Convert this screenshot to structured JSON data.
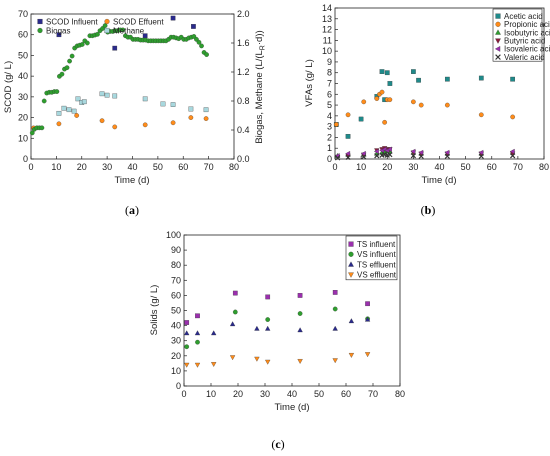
{
  "chart_data": [
    {
      "id": "a",
      "caption": "a",
      "type": "scatter",
      "xlabel": "Time (d)",
      "ylabel": "SCOD (g/ L)",
      "y2label": "Biogas, Methane (L/(L R·d))",
      "y2label_main": "Biogas, Methane (L/(L",
      "y2label_sub": "R",
      "y2label_end": "·d))",
      "xlim": [
        0,
        80
      ],
      "ylim": [
        0,
        70
      ],
      "y2lim": [
        0,
        2.0
      ],
      "xticks": [
        0,
        10,
        20,
        30,
        40,
        50,
        60,
        70,
        80
      ],
      "yticks": [
        0,
        10,
        20,
        30,
        40,
        50,
        60,
        70
      ],
      "y2ticks": [
        0.0,
        0.4,
        0.8,
        1.2,
        1.6,
        2.0
      ],
      "legend_position": "top-left",
      "series": [
        {
          "name": "SCOD Influent",
          "axis": "y",
          "marker": "square",
          "color": "#2a2a8c",
          "points": [
            [
              11,
              60
            ],
            [
              33,
              53.5
            ],
            [
              45,
              59.5
            ],
            [
              56,
              68
            ],
            [
              64,
              64
            ]
          ]
        },
        {
          "name": "SCOD Effuent",
          "axis": "y",
          "marker": "circle",
          "color": "#ff8c1a",
          "points": [
            [
              1,
              15
            ],
            [
              11,
              17
            ],
            [
              18,
              21
            ],
            [
              28,
              18.5
            ],
            [
              33,
              15.5
            ],
            [
              45,
              16.5
            ],
            [
              56,
              17.5
            ],
            [
              63,
              20
            ],
            [
              69,
              19.5
            ]
          ]
        },
        {
          "name": "Biogas",
          "axis": "y2",
          "marker": "circle",
          "color": "#2e9e2e",
          "points": [
            [
              0.5,
              0.36
            ],
            [
              1.3,
              0.41
            ],
            [
              2.3,
              0.43
            ],
            [
              3.3,
              0.43
            ],
            [
              4.3,
              0.43
            ],
            [
              5.2,
              0.8
            ],
            [
              6.2,
              0.91
            ],
            [
              7.2,
              0.92
            ],
            [
              8.2,
              0.92
            ],
            [
              9.2,
              0.93
            ],
            [
              10.2,
              0.93
            ],
            [
              11.2,
              1.14
            ],
            [
              12.2,
              1.17
            ],
            [
              13.2,
              1.24
            ],
            [
              14.2,
              1.26
            ],
            [
              15.2,
              1.35
            ],
            [
              16.2,
              1.42
            ],
            [
              17.2,
              1.53
            ],
            [
              18.2,
              1.56
            ],
            [
              19.2,
              1.57
            ],
            [
              20.2,
              1.58
            ],
            [
              21.2,
              1.63
            ],
            [
              22.2,
              1.6
            ],
            [
              23.2,
              1.7
            ],
            [
              24.2,
              1.7
            ],
            [
              25.2,
              1.71
            ],
            [
              26.2,
              1.72
            ],
            [
              27.2,
              1.77
            ],
            [
              28.2,
              1.8
            ],
            [
              29.2,
              1.84
            ],
            [
              30.2,
              1.75
            ],
            [
              31.2,
              1.76
            ],
            [
              32.2,
              1.76
            ],
            [
              33.2,
              1.77
            ],
            [
              34.2,
              1.77
            ],
            [
              35.2,
              1.78
            ],
            [
              36.2,
              1.78
            ],
            [
              37.2,
              1.7
            ],
            [
              38.2,
              1.68
            ],
            [
              39.2,
              1.68
            ],
            [
              40.2,
              1.65
            ],
            [
              41.2,
              1.65
            ],
            [
              42.2,
              1.65
            ],
            [
              43.2,
              1.64
            ],
            [
              44.2,
              1.64
            ],
            [
              45.2,
              1.64
            ],
            [
              46.2,
              1.63
            ],
            [
              47.2,
              1.63
            ],
            [
              48.2,
              1.63
            ],
            [
              49.2,
              1.63
            ],
            [
              50.2,
              1.63
            ],
            [
              51.2,
              1.63
            ],
            [
              52.2,
              1.63
            ],
            [
              53.2,
              1.63
            ],
            [
              54.2,
              1.65
            ],
            [
              55.2,
              1.68
            ],
            [
              56.2,
              1.68
            ],
            [
              57.2,
              1.67
            ],
            [
              58.2,
              1.66
            ],
            [
              59.2,
              1.68
            ],
            [
              60.2,
              1.65
            ],
            [
              61.2,
              1.65
            ],
            [
              62.2,
              1.67
            ],
            [
              63.2,
              1.68
            ],
            [
              64.2,
              1.69
            ],
            [
              65.2,
              1.65
            ],
            [
              66.2,
              1.61
            ],
            [
              67.2,
              1.56
            ],
            [
              68.2,
              1.47
            ],
            [
              69.2,
              1.44
            ]
          ]
        },
        {
          "name": "Methane",
          "axis": "y2",
          "marker": "square",
          "color": "#a8d8de",
          "points": [
            [
              11,
              0.63
            ],
            [
              13,
              0.7
            ],
            [
              15,
              0.68
            ],
            [
              17,
              0.66
            ],
            [
              18.5,
              0.83
            ],
            [
              20,
              0.78
            ],
            [
              21,
              0.79
            ],
            [
              28,
              0.9
            ],
            [
              30,
              0.88
            ],
            [
              33,
              0.87
            ],
            [
              45,
              0.83
            ],
            [
              52,
              0.76
            ],
            [
              56,
              0.75
            ],
            [
              63,
              0.69
            ],
            [
              69,
              0.68
            ]
          ]
        }
      ]
    },
    {
      "id": "b",
      "caption": "b",
      "type": "scatter",
      "xlabel": "Time (d)",
      "ylabel": "VFAs (g/ L)",
      "xlim": [
        0,
        80
      ],
      "ylim": [
        0,
        14
      ],
      "xticks": [
        0,
        10,
        20,
        30,
        40,
        50,
        60,
        70,
        80
      ],
      "yticks": [
        0,
        1,
        2,
        3,
        4,
        5,
        6,
        7,
        8,
        9,
        10,
        11,
        12,
        13,
        14
      ],
      "legend_position": "top-right",
      "series": [
        {
          "name": "Acetic acid",
          "marker": "square",
          "color": "#1f8a8a",
          "points": [
            [
              0.5,
              3.2
            ],
            [
              5,
              2.1
            ],
            [
              10,
              3.7
            ],
            [
              16,
              5.8
            ],
            [
              18,
              8.1
            ],
            [
              19,
              5.5
            ],
            [
              20,
              8.0
            ],
            [
              21,
              7.0
            ],
            [
              30,
              8.1
            ],
            [
              32,
              7.3
            ],
            [
              43,
              7.4
            ],
            [
              56,
              7.5
            ],
            [
              68,
              7.4
            ]
          ]
        },
        {
          "name": "Propionic acid",
          "marker": "circle",
          "color": "#ff8c1a",
          "points": [
            [
              0.5,
              3.2
            ],
            [
              5,
              4.1
            ],
            [
              11,
              5.3
            ],
            [
              16,
              5.6
            ],
            [
              17,
              6.0
            ],
            [
              18,
              6.2
            ],
            [
              19,
              3.4
            ],
            [
              20,
              5.5
            ],
            [
              21,
              5.5
            ],
            [
              30,
              5.3
            ],
            [
              33,
              5.0
            ],
            [
              43,
              5.0
            ],
            [
              56,
              4.1
            ],
            [
              68,
              3.9
            ]
          ]
        },
        {
          "name": "Isobutyric acid",
          "marker": "triangle-up",
          "color": "#2e9e2e",
          "points": [
            [
              1,
              0.3
            ],
            [
              5,
              0.4
            ],
            [
              11,
              0.4
            ],
            [
              16,
              0.5
            ],
            [
              18,
              0.6
            ],
            [
              19,
              0.6
            ],
            [
              20,
              0.7
            ],
            [
              21,
              0.7
            ],
            [
              30,
              0.6
            ],
            [
              33,
              0.5
            ],
            [
              43,
              0.5
            ],
            [
              56,
              0.5
            ],
            [
              68,
              0.6
            ]
          ]
        },
        {
          "name": "Butyric acid",
          "marker": "triangle-down",
          "color": "#8b1a3a",
          "points": [
            [
              1,
              0.2
            ],
            [
              5,
              0.3
            ],
            [
              11,
              0.4
            ],
            [
              16,
              0.8
            ],
            [
              18,
              0.9
            ],
            [
              19,
              1.0
            ],
            [
              20,
              0.9
            ],
            [
              21,
              0.9
            ],
            [
              30,
              0.6
            ],
            [
              33,
              0.5
            ],
            [
              43,
              0.5
            ],
            [
              56,
              0.5
            ],
            [
              68,
              0.5
            ]
          ]
        },
        {
          "name": "Isovaleric acid",
          "marker": "triangle-left",
          "color": "#9b2fae",
          "points": [
            [
              1,
              0.3
            ],
            [
              5,
              0.5
            ],
            [
              11,
              0.5
            ],
            [
              16,
              0.7
            ],
            [
              18,
              0.8
            ],
            [
              19,
              0.9
            ],
            [
              20,
              0.8
            ],
            [
              21,
              0.9
            ],
            [
              30,
              0.7
            ],
            [
              33,
              0.6
            ],
            [
              43,
              0.6
            ],
            [
              56,
              0.6
            ],
            [
              68,
              0.7
            ]
          ]
        },
        {
          "name": "Valeric acid",
          "marker": "x",
          "color": "#333333",
          "points": [
            [
              1,
              0.1
            ],
            [
              5,
              0.15
            ],
            [
              11,
              0.2
            ],
            [
              16,
              0.3
            ],
            [
              18,
              0.35
            ],
            [
              19,
              0.4
            ],
            [
              20,
              0.35
            ],
            [
              21,
              0.4
            ],
            [
              30,
              0.3
            ],
            [
              33,
              0.25
            ],
            [
              43,
              0.25
            ],
            [
              56,
              0.25
            ],
            [
              68,
              0.3
            ]
          ]
        }
      ]
    },
    {
      "id": "c",
      "caption": "c",
      "type": "scatter",
      "xlabel": "Time (d)",
      "ylabel": "Solids (g/ L)",
      "xlim": [
        0,
        80
      ],
      "ylim": [
        0,
        100
      ],
      "xticks": [
        0,
        10,
        20,
        30,
        40,
        50,
        60,
        70,
        80
      ],
      "yticks": [
        0,
        10,
        20,
        30,
        40,
        50,
        60,
        70,
        80,
        90,
        100
      ],
      "legend_position": "top-right",
      "series": [
        {
          "name": "TS influent",
          "marker": "square",
          "color": "#9b2fae",
          "points": [
            [
              1,
              42
            ],
            [
              5,
              46.5
            ],
            [
              19,
              61.5
            ],
            [
              31,
              59
            ],
            [
              43,
              60
            ],
            [
              56,
              62
            ],
            [
              68,
              54.5
            ]
          ]
        },
        {
          "name": "VS influent",
          "marker": "circle",
          "color": "#2e9e2e",
          "points": [
            [
              1,
              26
            ],
            [
              5,
              29
            ],
            [
              19,
              49
            ],
            [
              31,
              44
            ],
            [
              43,
              48
            ],
            [
              56,
              51
            ],
            [
              68,
              44.5
            ]
          ]
        },
        {
          "name": "TS effluent",
          "marker": "triangle-up",
          "color": "#2a2a8c",
          "points": [
            [
              1,
              35
            ],
            [
              5,
              35
            ],
            [
              11,
              35
            ],
            [
              18,
              41
            ],
            [
              27,
              38
            ],
            [
              31,
              38
            ],
            [
              43,
              37
            ],
            [
              56,
              38
            ],
            [
              62,
              43
            ],
            [
              68,
              44
            ]
          ]
        },
        {
          "name": "VS effluent",
          "marker": "triangle-down",
          "color": "#ff8c1a",
          "points": [
            [
              1,
              14
            ],
            [
              5,
              14
            ],
            [
              11,
              14.5
            ],
            [
              18,
              19
            ],
            [
              27,
              18
            ],
            [
              31,
              16
            ],
            [
              43,
              16.5
            ],
            [
              56,
              17
            ],
            [
              62,
              20.5
            ],
            [
              68,
              21
            ]
          ]
        }
      ]
    }
  ]
}
